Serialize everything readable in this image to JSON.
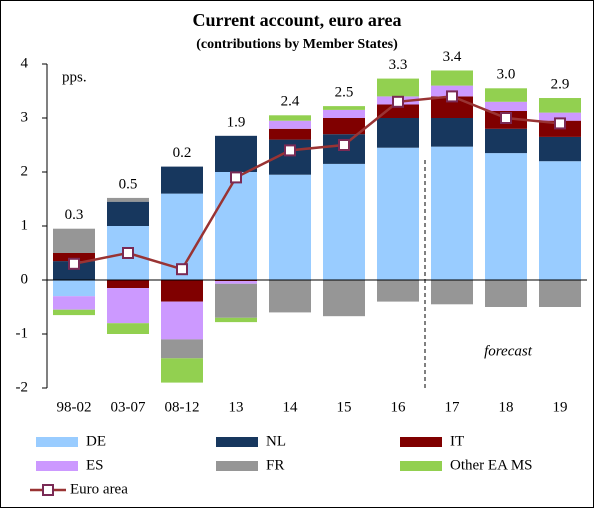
{
  "chart_data": {
    "type": "bar",
    "title": "Current account, euro area",
    "subtitle": "(contributions by Member States)",
    "ylabel": "pps.",
    "annotation": "forecast",
    "categories": [
      "98-02",
      "03-07",
      "08-12",
      "13",
      "14",
      "15",
      "16",
      "17",
      "18",
      "19"
    ],
    "ylim": [
      -2,
      4
    ],
    "yticks": [
      -2,
      -1,
      0,
      1,
      2,
      3,
      4
    ],
    "series": [
      {
        "name": "DE",
        "color": "#99ccff",
        "values": [
          -0.3,
          1.0,
          1.6,
          2.0,
          1.95,
          2.15,
          2.45,
          2.47,
          2.35,
          2.2
        ]
      },
      {
        "name": "NL",
        "color": "#17375e",
        "values": [
          0.35,
          0.45,
          0.5,
          0.67,
          0.65,
          0.55,
          0.55,
          0.53,
          0.45,
          0.45
        ]
      },
      {
        "name": "IT",
        "color": "#800000",
        "values": [
          0.15,
          -0.15,
          -0.4,
          -0.02,
          0.2,
          0.3,
          0.25,
          0.4,
          0.33,
          0.3
        ]
      },
      {
        "name": "ES",
        "color": "#cc99ff",
        "values": [
          -0.25,
          -0.65,
          -0.7,
          -0.05,
          0.15,
          0.15,
          0.15,
          0.2,
          0.17,
          0.15
        ]
      },
      {
        "name": "FR",
        "color": "#969696",
        "values": [
          0.45,
          0.07,
          -0.35,
          -0.63,
          -0.6,
          -0.67,
          -0.4,
          -0.45,
          -0.5,
          -0.5
        ]
      },
      {
        "name": "Other EA MS",
        "color": "#92d050",
        "values": [
          -0.1,
          -0.2,
          -0.45,
          -0.08,
          0.1,
          0.07,
          0.33,
          0.28,
          0.25,
          0.27
        ]
      },
      {
        "name": "Euro area",
        "type": "line",
        "color": "#993333",
        "values": [
          0.3,
          0.5,
          0.2,
          1.9,
          2.4,
          2.5,
          3.3,
          3.4,
          3.0,
          2.9
        ],
        "value_labels": [
          "0.3",
          "0.5",
          "0.2",
          "1.9",
          "2.4",
          "2.5",
          "3.3",
          "3.4",
          "3.0",
          "2.9"
        ]
      }
    ]
  }
}
